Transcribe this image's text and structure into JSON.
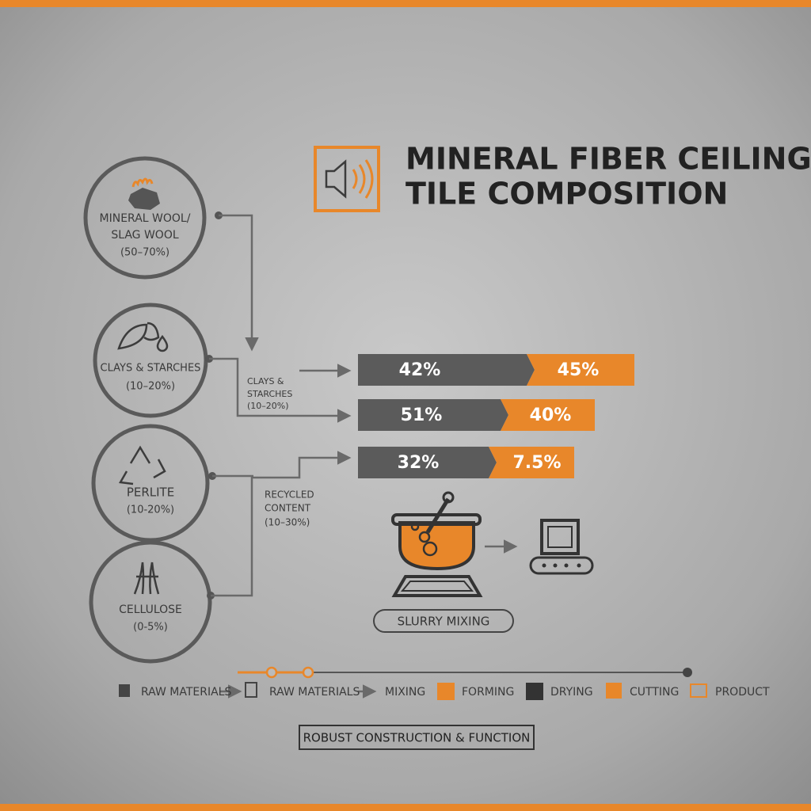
{
  "header": {
    "title": [
      "MINERAL FIBER CEILING",
      "TILE COMPOSITION"
    ]
  },
  "materials": [
    {
      "name": [
        "MINERAL WOOL/",
        "SLAG WOOL"
      ],
      "range": "(50–70%)"
    },
    {
      "name": [
        "CLAYS & STARCHES"
      ],
      "range": "(10–20%)"
    },
    {
      "name": [
        "PERLITE"
      ],
      "range": "(10-20%)"
    },
    {
      "name": [
        "CELLULOSE"
      ],
      "range": "(0-5%)"
    }
  ],
  "annotations": [
    [
      "CLAYS &",
      "STARCHES",
      "(10–20%)"
    ],
    [
      "RECYCLED",
      "CONTENT",
      "(10–30%)"
    ]
  ],
  "bars": [
    [
      "42%",
      "45%"
    ],
    [
      "51%",
      "40%"
    ],
    [
      "32%",
      "7.5%"
    ]
  ],
  "process": {
    "label": "SLURRY MIXING"
  },
  "steps": [
    "RAW MATERIALS",
    "RAW MATERIALS",
    "MIXING",
    "FORMING",
    "DRYING",
    "CUTTING",
    "PRODUCT"
  ],
  "footer": "ROBUST CONSTRUCTION & FUNCTION"
}
